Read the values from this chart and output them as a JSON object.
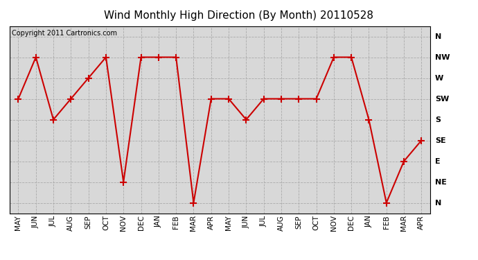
{
  "title": "Wind Monthly High Direction (By Month) 20110528",
  "copyright": "Copyright 2011 Cartronics.com",
  "months": [
    "MAY",
    "JUN",
    "JUL",
    "AUG",
    "SEP",
    "OCT",
    "NOV",
    "DEC",
    "JAN",
    "FEB",
    "MAR",
    "APR",
    "MAY",
    "JUN",
    "JUL",
    "AUG",
    "SEP",
    "OCT",
    "NOV",
    "DEC",
    "JAN",
    "FEB",
    "MAR",
    "APR"
  ],
  "y_vals": [
    5,
    7,
    4,
    5,
    6,
    7,
    1,
    7,
    7,
    7,
    0,
    5,
    5,
    4,
    5,
    5,
    5,
    5,
    7,
    7,
    4,
    0,
    2,
    3
  ],
  "ytick_vals": [
    0,
    1,
    2,
    3,
    4,
    5,
    6,
    7,
    8
  ],
  "ytick_labels": [
    "N",
    "NE",
    "E",
    "SE",
    "S",
    "SW",
    "W",
    "NW",
    "N"
  ],
  "line_color": "#cc0000",
  "marker": "+",
  "marker_size": 7,
  "marker_linewidth": 1.5,
  "bg_color": "#d8d8d8",
  "grid_color": "#aaaaaa",
  "title_fontsize": 11,
  "copyright_fontsize": 7,
  "tick_fontsize": 7.5,
  "ytick_fontsize": 8
}
